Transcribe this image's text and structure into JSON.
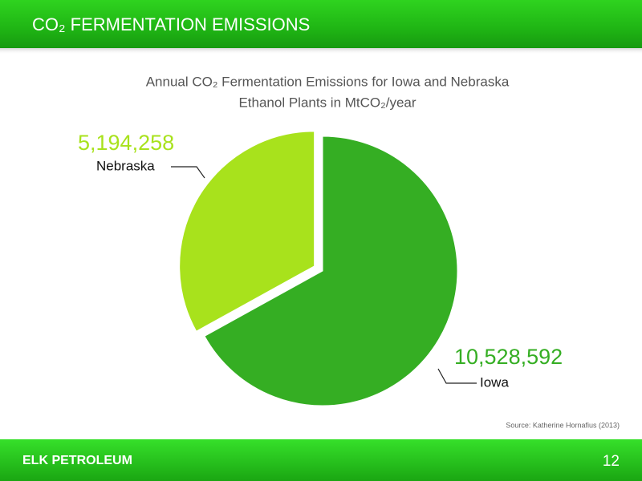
{
  "header": {
    "title": "CO₂ FERMENTATION EMISSIONS"
  },
  "chart_data": {
    "type": "pie",
    "title": [
      "Annual CO₂ Fermentation Emissions for Iowa and Nebraska",
      "Ethanol Plants in MtCO₂/year"
    ],
    "categories": [
      "Iowa",
      "Nebraska"
    ],
    "values": [
      10528592,
      5194258
    ],
    "value_labels": [
      "10,528,592",
      "5,194,258"
    ],
    "colors": [
      "#35ae23",
      "#a8e21c"
    ],
    "exploded": [
      false,
      true
    ]
  },
  "source": "Source: Katherine Hornafius (2013)",
  "footer": {
    "logo": "ELK PETROLEUM",
    "page_number": "12"
  }
}
